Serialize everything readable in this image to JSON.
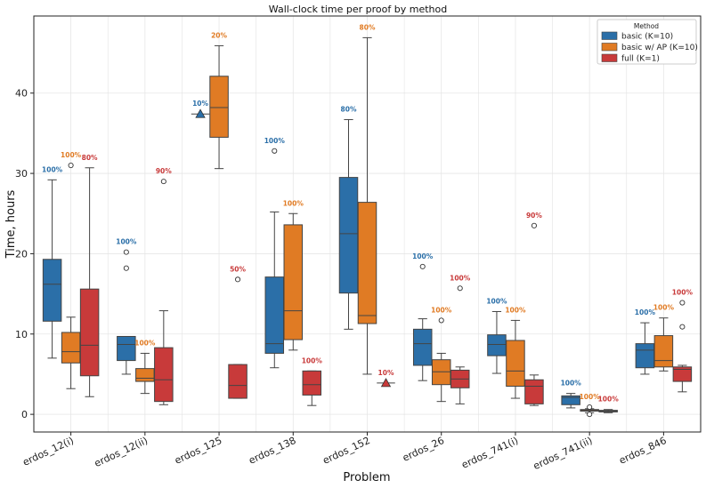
{
  "chart_data": {
    "type": "box",
    "title": "Wall-clock time per proof by method",
    "xlabel": "Problem",
    "ylabel": "Time, hours",
    "ylim": [
      -2.2,
      49.6
    ],
    "yticks": [
      0,
      10,
      20,
      30,
      40
    ],
    "grid": true,
    "legend": {
      "title": "Method",
      "placement": "top-right"
    },
    "categories": [
      "erdos_12(i)",
      "erdos_12(ii)",
      "erdos_125",
      "erdos_138",
      "erdos_152",
      "erdos_26",
      "erdos_741(i)",
      "erdos_741(ii)",
      "erdos_846"
    ],
    "series": [
      {
        "name": "basic (K=10)",
        "color": "#2b6fa8",
        "boxes": [
          {
            "min": 7.0,
            "q1": 11.6,
            "median": 16.2,
            "q3": 19.3,
            "max": 29.2,
            "outliers": [],
            "label": "100%"
          },
          {
            "min": 5.0,
            "q1": 6.7,
            "median": 8.7,
            "q3": 9.7,
            "max": 9.7,
            "outliers": [
              18.2,
              20.2
            ],
            "label": "100%"
          },
          {
            "single": 37.4,
            "label": "10%"
          },
          {
            "min": 5.8,
            "q1": 7.6,
            "median": 8.8,
            "q3": 17.1,
            "max": 25.2,
            "outliers": [
              32.8
            ],
            "label": "100%"
          },
          {
            "min": 10.6,
            "q1": 15.1,
            "median": 22.5,
            "q3": 29.5,
            "max": 36.7,
            "outliers": [],
            "label": "80%"
          },
          {
            "min": 4.2,
            "q1": 6.1,
            "median": 8.8,
            "q3": 10.6,
            "max": 11.9,
            "outliers": [
              18.4
            ],
            "label": "100%"
          },
          {
            "min": 5.1,
            "q1": 7.3,
            "median": 8.7,
            "q3": 9.9,
            "max": 12.8,
            "outliers": [],
            "label": "100%"
          },
          {
            "min": 0.8,
            "q1": 1.2,
            "median": 2.1,
            "q3": 2.3,
            "max": 2.6,
            "outliers": [],
            "label": "100%"
          },
          {
            "min": 5.0,
            "q1": 5.8,
            "median": 8.0,
            "q3": 8.8,
            "max": 11.4,
            "outliers": [],
            "label": "100%"
          }
        ]
      },
      {
        "name": "basic w/ AP (K=10)",
        "color": "#e07b24",
        "boxes": [
          {
            "min": 3.2,
            "q1": 6.4,
            "median": 7.8,
            "q3": 10.2,
            "max": 12.1,
            "outliers": [
              31.0
            ],
            "label": "100%"
          },
          {
            "min": 2.6,
            "q1": 4.1,
            "median": 4.5,
            "q3": 5.7,
            "max": 7.6,
            "outliers": [],
            "label": "100%"
          },
          {
            "min": 30.6,
            "q1": 34.5,
            "median": 38.2,
            "q3": 42.1,
            "max": 45.9,
            "outliers": [],
            "label": "20%"
          },
          {
            "min": 8.0,
            "q1": 9.3,
            "median": 12.9,
            "q3": 23.6,
            "max": 25.0,
            "outliers": [],
            "label": "100%"
          },
          {
            "min": 5.0,
            "q1": 11.3,
            "median": 12.3,
            "q3": 26.4,
            "max": 46.9,
            "outliers": [],
            "label": "80%"
          },
          {
            "min": 1.6,
            "q1": 3.7,
            "median": 5.3,
            "q3": 6.8,
            "max": 7.6,
            "outliers": [
              11.7
            ],
            "label": "100%"
          },
          {
            "min": 2.0,
            "q1": 3.5,
            "median": 5.4,
            "q3": 9.2,
            "max": 11.7,
            "outliers": [],
            "label": "100%"
          },
          {
            "min": 0.2,
            "q1": 0.4,
            "median": 0.5,
            "q3": 0.6,
            "max": 0.7,
            "outliers": [
              0.0,
              0.9
            ],
            "label": "100%"
          },
          {
            "min": 5.4,
            "q1": 5.9,
            "median": 6.7,
            "q3": 9.8,
            "max": 12.0,
            "outliers": [],
            "label": "100%"
          }
        ]
      },
      {
        "name": "full (K=1)",
        "color": "#c83a3a",
        "boxes": [
          {
            "min": 2.2,
            "q1": 4.8,
            "median": 8.6,
            "q3": 15.6,
            "max": 30.7,
            "outliers": [],
            "label": "80%"
          },
          {
            "min": 1.2,
            "q1": 1.6,
            "median": 4.3,
            "q3": 8.3,
            "max": 12.9,
            "outliers": [
              29.0
            ],
            "label": "90%"
          },
          {
            "min": 2.0,
            "q1": 2.0,
            "median": 3.6,
            "q3": 6.2,
            "max": 6.2,
            "outliers": [
              16.8
            ],
            "label": "50%"
          },
          {
            "min": 1.1,
            "q1": 2.4,
            "median": 3.7,
            "q3": 5.4,
            "max": 5.4,
            "outliers": [],
            "label": "100%"
          },
          {
            "single": 3.9,
            "label": "10%"
          },
          {
            "min": 1.3,
            "q1": 3.3,
            "median": 4.4,
            "q3": 5.5,
            "max": 5.9,
            "outliers": [
              15.7
            ],
            "label": "100%"
          },
          {
            "min": 1.1,
            "q1": 1.3,
            "median": 3.5,
            "q3": 4.3,
            "max": 4.9,
            "outliers": [
              23.5
            ],
            "label": "90%"
          },
          {
            "min": 0.2,
            "q1": 0.3,
            "median": 0.4,
            "q3": 0.5,
            "max": 0.6,
            "outliers": [],
            "label": "100%"
          },
          {
            "min": 2.8,
            "q1": 4.1,
            "median": 5.6,
            "q3": 5.9,
            "max": 6.1,
            "outliers": [
              13.9,
              10.9
            ],
            "label": "100%"
          }
        ]
      }
    ]
  }
}
